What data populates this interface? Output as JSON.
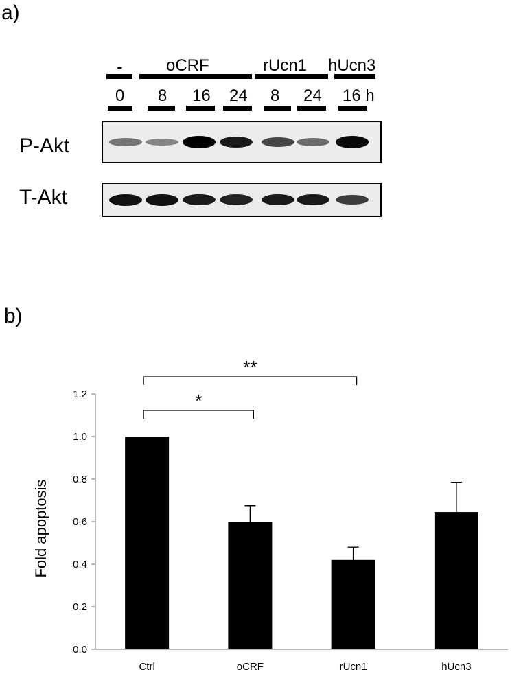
{
  "panels": {
    "a": "a)",
    "b": "b)"
  },
  "blot": {
    "group_labels": [
      {
        "id": "ctrl",
        "text": "-"
      },
      {
        "id": "ocrf",
        "text": "oCRF"
      },
      {
        "id": "rucn1",
        "text": "rUcn1"
      },
      {
        "id": "hucn3",
        "text": "hUcn3"
      }
    ],
    "lanes": [
      "0",
      "8",
      "16",
      "24",
      "8",
      "24",
      "16 h"
    ],
    "rows": [
      {
        "label": "P-Akt",
        "intensity": [
          0.35,
          0.25,
          1.0,
          0.85,
          0.6,
          0.4,
          0.95
        ]
      },
      {
        "label": "T-Akt",
        "intensity": [
          0.9,
          0.9,
          0.85,
          0.8,
          0.85,
          0.85,
          0.65
        ]
      }
    ]
  },
  "chart_data": {
    "type": "bar",
    "categories": [
      "Ctrl",
      "oCRF",
      "rUcn1",
      "hUcn3"
    ],
    "values": [
      1.0,
      0.6,
      0.42,
      0.645
    ],
    "errors": [
      0.0,
      0.075,
      0.06,
      0.14
    ],
    "ylabel": "Fold apoptosis",
    "ylim": [
      0,
      1.2
    ],
    "yticks": [
      "0.0",
      "0.2",
      "0.4",
      "0.6",
      "0.8",
      "1.0",
      "1.2"
    ],
    "bar_color": "#000000",
    "significance": [
      {
        "from": "Ctrl",
        "to": "oCRF",
        "label": "*"
      },
      {
        "from": "Ctrl",
        "to": "rUcn1",
        "label": "**"
      }
    ]
  }
}
